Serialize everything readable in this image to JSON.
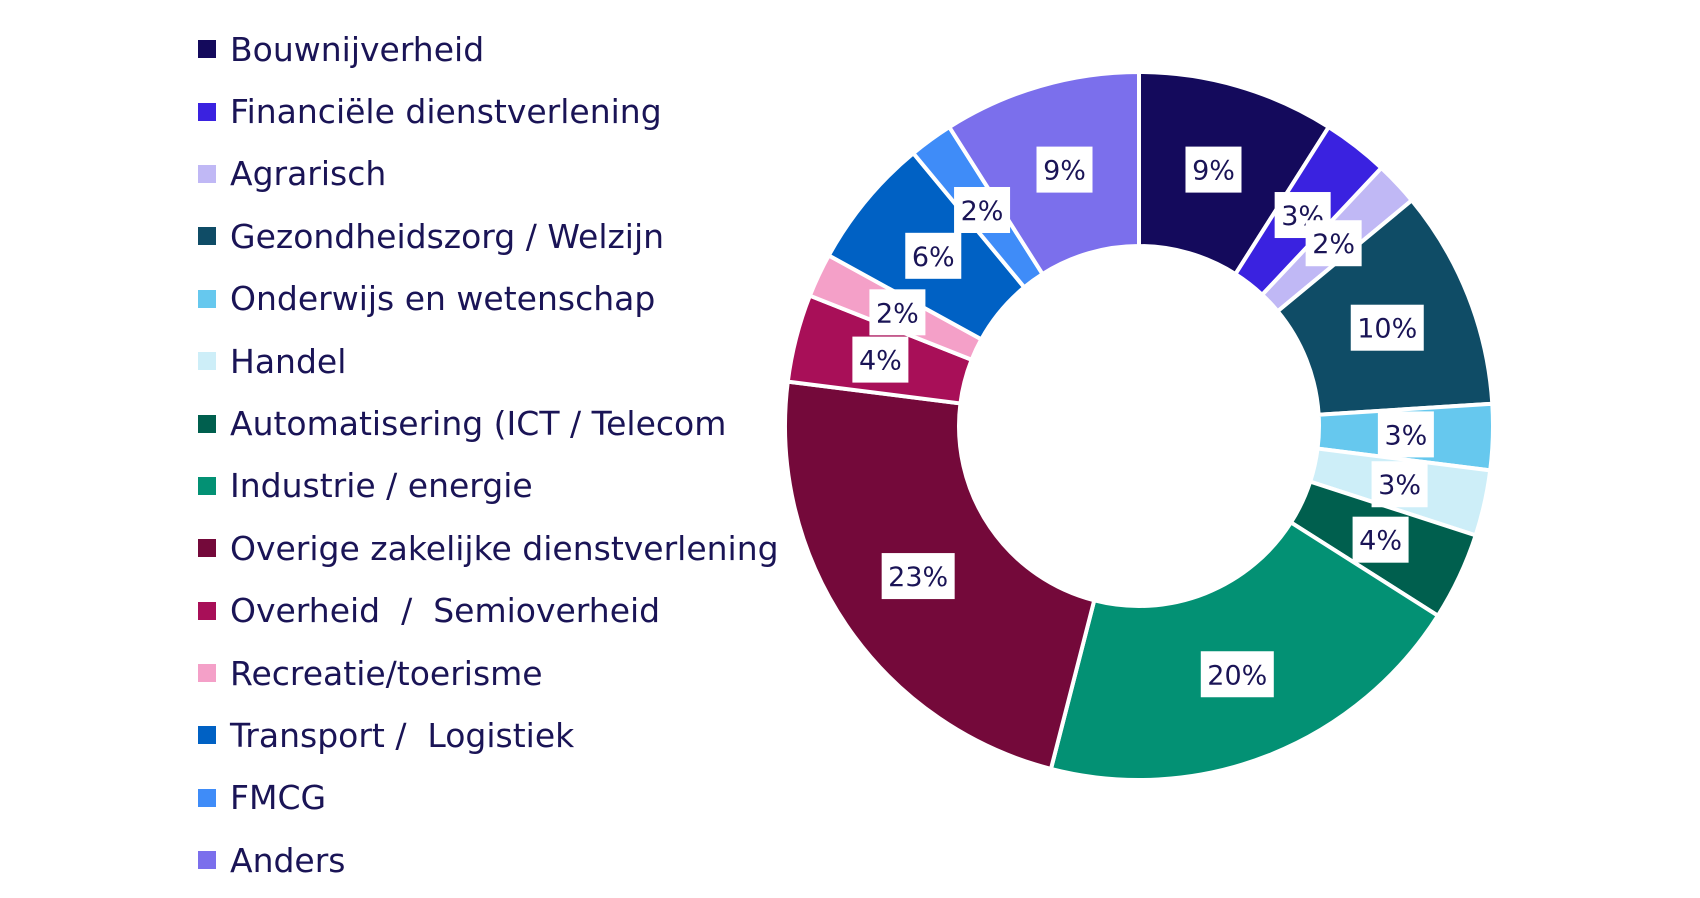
{
  "chart_data": {
    "type": "pie",
    "donut": true,
    "legend_position": "left",
    "start": "top, clockwise",
    "categories": [
      "Bouwnijverheid",
      "Financiële dienstverlening",
      "Agrarisch",
      "Gezondheidszorg / Welzijn",
      "Onderwijs en wetenschap",
      "Handel",
      "Automatisering (ICT / Telecom",
      "Industrie / energie",
      "Overige zakelijke dienstverlening",
      "Overheid  /  Semioverheid",
      "Recreatie/toerisme",
      "Transport /  Logistiek",
      "FMCG",
      "Anders"
    ],
    "values": [
      9,
      3,
      2,
      10,
      3,
      3,
      4,
      20,
      23,
      4,
      2,
      6,
      2,
      9
    ],
    "data_labels": [
      "9%",
      "3%",
      "2%",
      "10%",
      "3%",
      "3%",
      "4%",
      "20%",
      "23%",
      "4%",
      "2%",
      "6%",
      "2%",
      "9%"
    ],
    "colors": [
      "#140a5c",
      "#3a22e0",
      "#c0b8f5",
      "#0f4c66",
      "#66c8ee",
      "#cdeef8",
      "#005f4e",
      "#039174",
      "#74093a",
      "#a80f58",
      "#f4a0c8",
      "#0061c4",
      "#3f8cf8",
      "#7b6fec"
    ]
  }
}
